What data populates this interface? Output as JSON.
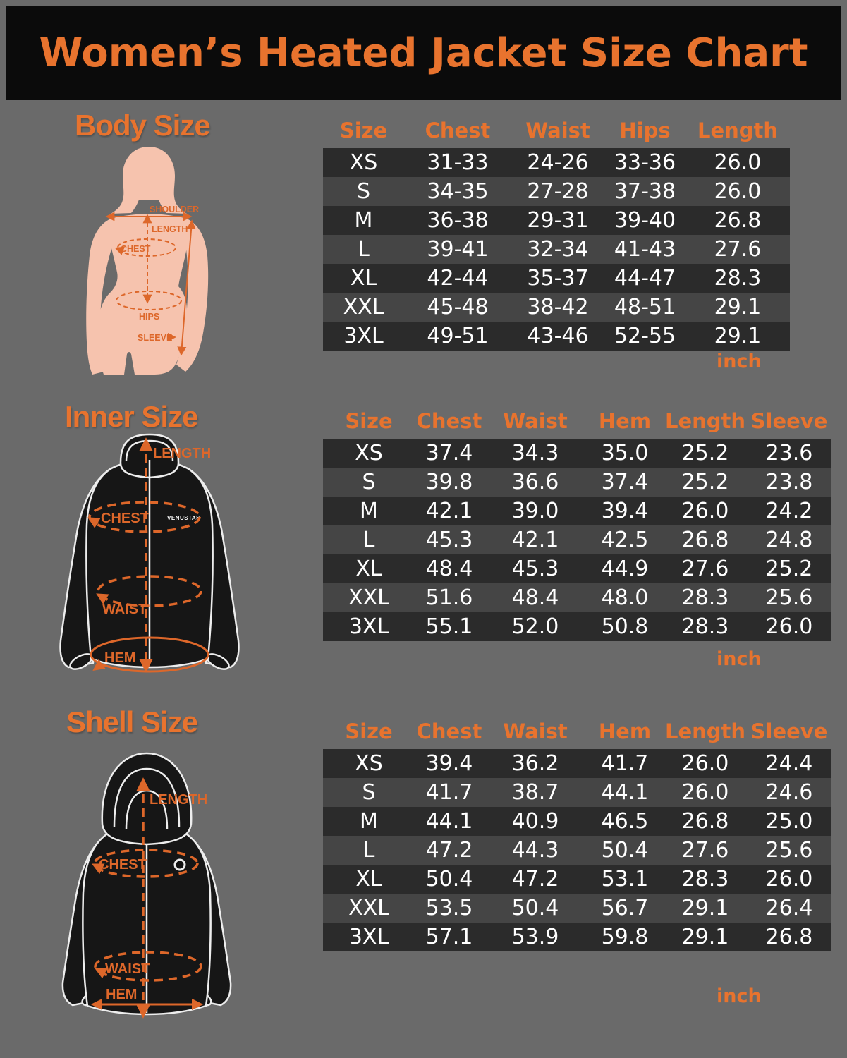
{
  "page": {
    "title": "Women’s Heated Jacket Size Chart"
  },
  "colors": {
    "background": "#6a6a6a",
    "banner_bg": "#0b0b0b",
    "accent_orange": "#e8732e",
    "annotation_orange": "#dd672a",
    "row_dark": "#2b2b2b",
    "row_light": "#454545",
    "table_text": "#ffffff",
    "body_fill": "#f6c3ae",
    "jacket_fill": "#161616",
    "jacket_outline": "#ededed"
  },
  "sections": [
    {
      "id": "body",
      "title": "Body Size",
      "diagram_labels": [
        "SHOULDER",
        "LENGTH",
        "CHEST",
        "HIPS",
        "SLEEVE"
      ],
      "table": {
        "columns": [
          "Size",
          "Chest",
          "Waist",
          "Hips",
          "Length"
        ],
        "rows": [
          [
            "XS",
            "31-33",
            "24-26",
            "33-36",
            "26.0"
          ],
          [
            "S",
            "34-35",
            "27-28",
            "37-38",
            "26.0"
          ],
          [
            "M",
            "36-38",
            "29-31",
            "39-40",
            "26.8"
          ],
          [
            "L",
            "39-41",
            "32-34",
            "41-43",
            "27.6"
          ],
          [
            "XL",
            "42-44",
            "35-37",
            "44-47",
            "28.3"
          ],
          [
            "XXL",
            "45-48",
            "38-42",
            "48-51",
            "29.1"
          ],
          [
            "3XL",
            "49-51",
            "43-46",
            "52-55",
            "29.1"
          ]
        ],
        "unit": "inch"
      }
    },
    {
      "id": "inner",
      "title": "Inner Size",
      "diagram_labels": [
        "LENGTH",
        "CHEST",
        "WAIST",
        "HEM"
      ],
      "brand": "VENUSTAS",
      "table": {
        "columns": [
          "Size",
          "Chest",
          "Waist",
          "Hem",
          "Length",
          "Sleeve"
        ],
        "rows": [
          [
            "XS",
            "37.4",
            "34.3",
            "35.0",
            "25.2",
            "23.6"
          ],
          [
            "S",
            "39.8",
            "36.6",
            "37.4",
            "25.2",
            "23.8"
          ],
          [
            "M",
            "42.1",
            "39.0",
            "39.4",
            "26.0",
            "24.2"
          ],
          [
            "L",
            "45.3",
            "42.1",
            "42.5",
            "26.8",
            "24.8"
          ],
          [
            "XL",
            "48.4",
            "45.3",
            "44.9",
            "27.6",
            "25.2"
          ],
          [
            "XXL",
            "51.6",
            "48.4",
            "48.0",
            "28.3",
            "25.6"
          ],
          [
            "3XL",
            "55.1",
            "52.0",
            "50.8",
            "28.3",
            "26.0"
          ]
        ],
        "unit": "inch"
      }
    },
    {
      "id": "shell",
      "title": "Shell Size",
      "diagram_labels": [
        "LENGTH",
        "CHEST",
        "WAIST",
        "HEM"
      ],
      "table": {
        "columns": [
          "Size",
          "Chest",
          "Waist",
          "Hem",
          "Length",
          "Sleeve"
        ],
        "rows": [
          [
            "XS",
            "39.4",
            "36.2",
            "41.7",
            "26.0",
            "24.4"
          ],
          [
            "S",
            "41.7",
            "38.7",
            "44.1",
            "26.0",
            "24.6"
          ],
          [
            "M",
            "44.1",
            "40.9",
            "46.5",
            "26.8",
            "25.0"
          ],
          [
            "L",
            "47.2",
            "44.3",
            "50.4",
            "27.6",
            "25.6"
          ],
          [
            "XL",
            "50.4",
            "47.2",
            "53.1",
            "28.3",
            "26.0"
          ],
          [
            "XXL",
            "53.5",
            "50.4",
            "56.7",
            "29.1",
            "26.4"
          ],
          [
            "3XL",
            "57.1",
            "53.9",
            "59.8",
            "29.1",
            "26.8"
          ]
        ],
        "unit": "inch"
      }
    }
  ]
}
